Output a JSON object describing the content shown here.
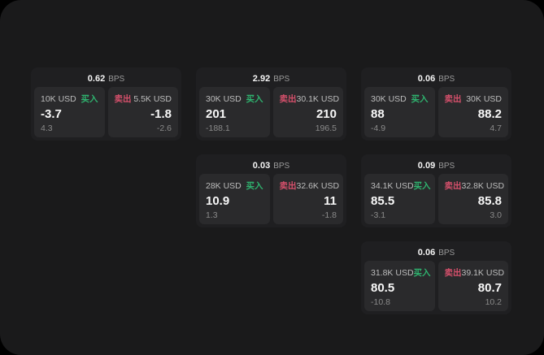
{
  "colors": {
    "buy": "#2fb36f",
    "sell": "#d5506b",
    "window_bg": "#1a1a1b",
    "card_bg": "#1f1f21",
    "panel_bg": "#2a2a2c"
  },
  "labels": {
    "bps": "BPS",
    "buy": "买入",
    "sell": "卖出"
  },
  "cards": [
    {
      "bps": "0.62",
      "buy": {
        "amount": "10K USD",
        "value": "-3.7",
        "sub": "4.3"
      },
      "sell": {
        "amount": "5.5K USD",
        "value": "-1.8",
        "sub": "-2.6"
      }
    },
    {
      "bps": "2.92",
      "buy": {
        "amount": "30K USD",
        "value": "201",
        "sub": "-188.1"
      },
      "sell": {
        "amount": "30.1K USD",
        "value": "210",
        "sub": "196.5"
      }
    },
    {
      "bps": "0.06",
      "buy": {
        "amount": "30K USD",
        "value": "88",
        "sub": "-4.9"
      },
      "sell": {
        "amount": "30K USD",
        "value": "88.2",
        "sub": "4.7"
      }
    },
    {
      "bps": "0.03",
      "buy": {
        "amount": "28K USD",
        "value": "10.9",
        "sub": "1.3"
      },
      "sell": {
        "amount": "32.6K USD",
        "value": "11",
        "sub": "-1.8"
      }
    },
    {
      "bps": "0.09",
      "buy": {
        "amount": "34.1K USD",
        "value": "85.5",
        "sub": "-3.1"
      },
      "sell": {
        "amount": "32.8K USD",
        "value": "85.8",
        "sub": "3.0"
      }
    },
    {
      "bps": "0.06",
      "buy": {
        "amount": "31.8K USD",
        "value": "80.5",
        "sub": "-10.8"
      },
      "sell": {
        "amount": "39.1K USD",
        "value": "80.7",
        "sub": "10.2"
      }
    }
  ]
}
